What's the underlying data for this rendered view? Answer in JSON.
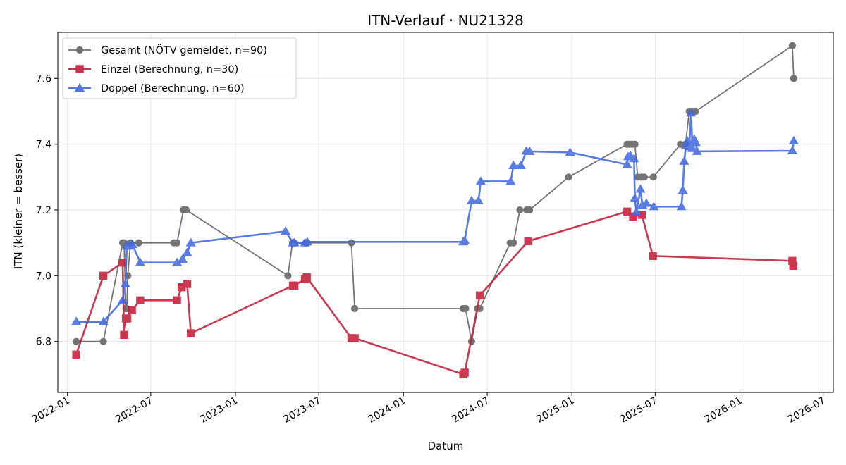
{
  "chart_data": {
    "type": "line",
    "title": "ITN-Verlauf · NU21328",
    "xlabel": "Datum",
    "ylabel": "ITN  (kleiner = besser)",
    "x_type": "date",
    "xlim": [
      "2021-12-11",
      "2026-07-23"
    ],
    "ylim": [
      6.645,
      7.74
    ],
    "x_ticks": [
      "2022-01",
      "2022-07",
      "2023-01",
      "2023-07",
      "2024-01",
      "2024-07",
      "2025-01",
      "2025-07",
      "2026-01",
      "2026-07"
    ],
    "y_ticks": [
      6.8,
      7.0,
      7.2,
      7.4,
      7.6
    ],
    "y_tick_labels": [
      "6.8",
      "7.0",
      "7.2",
      "7.4",
      "7.6"
    ],
    "grid": true,
    "legend_position": "top-left",
    "series": [
      {
        "name": "Gesamt (NÖTV gemeldet, n=90)",
        "color": "#404040",
        "marker": "circle",
        "points": [
          [
            "2022-01-20",
            6.8
          ],
          [
            "2022-03-20",
            6.8
          ],
          [
            "2022-05-01",
            7.1
          ],
          [
            "2022-05-04",
            7.1
          ],
          [
            "2022-05-08",
            6.9
          ],
          [
            "2022-05-10",
            6.9
          ],
          [
            "2022-05-12",
            7.0
          ],
          [
            "2022-05-18",
            7.1
          ],
          [
            "2022-06-05",
            7.1
          ],
          [
            "2022-08-20",
            7.1
          ],
          [
            "2022-08-27",
            7.1
          ],
          [
            "2022-09-10",
            7.2
          ],
          [
            "2022-09-16",
            7.2
          ],
          [
            "2023-04-25",
            7.0
          ],
          [
            "2023-05-05",
            7.1
          ],
          [
            "2023-05-08",
            7.1
          ],
          [
            "2023-06-03",
            7.1
          ],
          [
            "2023-06-06",
            7.1
          ],
          [
            "2023-09-10",
            7.1
          ],
          [
            "2023-09-17",
            6.9
          ],
          [
            "2024-05-10",
            6.9
          ],
          [
            "2024-05-15",
            6.9
          ],
          [
            "2024-05-28",
            6.8
          ],
          [
            "2024-06-10",
            6.9
          ],
          [
            "2024-06-15",
            6.9
          ],
          [
            "2024-08-20",
            7.1
          ],
          [
            "2024-08-27",
            7.1
          ],
          [
            "2024-09-10",
            7.2
          ],
          [
            "2024-09-25",
            7.2
          ],
          [
            "2024-10-01",
            7.2
          ],
          [
            "2024-12-25",
            7.3
          ],
          [
            "2025-05-01",
            7.4
          ],
          [
            "2025-05-06",
            7.4
          ],
          [
            "2025-05-12",
            7.4
          ],
          [
            "2025-05-18",
            7.4
          ],
          [
            "2025-05-24",
            7.3
          ],
          [
            "2025-06-01",
            7.3
          ],
          [
            "2025-06-07",
            7.3
          ],
          [
            "2025-06-27",
            7.3
          ],
          [
            "2025-08-25",
            7.4
          ],
          [
            "2025-09-05",
            7.4
          ],
          [
            "2025-09-13",
            7.5
          ],
          [
            "2025-09-20",
            7.5
          ],
          [
            "2025-09-27",
            7.5
          ],
          [
            "2026-04-25",
            7.7
          ],
          [
            "2026-04-28",
            7.6
          ]
        ]
      },
      {
        "name": "Einzel (Berechnung, n=30)",
        "color": "#c41e3a",
        "marker": "square",
        "points": [
          [
            "2022-01-20",
            6.76
          ],
          [
            "2022-03-20",
            7.0
          ],
          [
            "2022-05-01",
            7.04
          ],
          [
            "2022-05-04",
            6.82
          ],
          [
            "2022-05-08",
            6.87
          ],
          [
            "2022-05-11",
            6.87
          ],
          [
            "2022-05-21",
            6.895
          ],
          [
            "2022-06-08",
            6.925
          ],
          [
            "2022-08-27",
            6.925
          ],
          [
            "2022-09-06",
            6.965
          ],
          [
            "2022-09-18",
            6.975
          ],
          [
            "2022-09-26",
            6.825
          ],
          [
            "2023-05-06",
            6.97
          ],
          [
            "2023-05-09",
            6.97
          ],
          [
            "2023-06-01",
            6.99
          ],
          [
            "2023-06-05",
            6.995
          ],
          [
            "2023-09-10",
            6.81
          ],
          [
            "2023-09-17",
            6.81
          ],
          [
            "2024-05-10",
            6.7
          ],
          [
            "2024-05-13",
            6.705
          ],
          [
            "2024-06-15",
            6.94
          ],
          [
            "2024-09-28",
            7.105
          ],
          [
            "2025-05-01",
            7.195
          ],
          [
            "2025-05-14",
            7.18
          ],
          [
            "2025-06-02",
            7.185
          ],
          [
            "2025-06-26",
            7.06
          ],
          [
            "2026-04-25",
            7.045
          ],
          [
            "2026-04-27",
            7.03
          ]
        ]
      },
      {
        "name": "Doppel (Berechnung, n=60)",
        "color": "#4169e1",
        "marker": "triangle",
        "points": [
          [
            "2022-01-20",
            6.86
          ],
          [
            "2022-03-20",
            6.86
          ],
          [
            "2022-05-01",
            6.925
          ],
          [
            "2022-05-07",
            6.975
          ],
          [
            "2022-05-10",
            7.09
          ],
          [
            "2022-05-14",
            7.09
          ],
          [
            "2022-05-22",
            7.095
          ],
          [
            "2022-06-08",
            7.04
          ],
          [
            "2022-08-27",
            7.04
          ],
          [
            "2022-09-08",
            7.05
          ],
          [
            "2022-09-18",
            7.07
          ],
          [
            "2022-09-26",
            7.1
          ],
          [
            "2023-04-20",
            7.135
          ],
          [
            "2023-05-06",
            7.1
          ],
          [
            "2023-05-09",
            7.1
          ],
          [
            "2023-06-01",
            7.1
          ],
          [
            "2023-06-06",
            7.103
          ],
          [
            "2024-05-10",
            7.103
          ],
          [
            "2024-05-13",
            7.107
          ],
          [
            "2024-05-28",
            7.228
          ],
          [
            "2024-06-12",
            7.228
          ],
          [
            "2024-06-17",
            7.287
          ],
          [
            "2024-08-21",
            7.287
          ],
          [
            "2024-08-27",
            7.335
          ],
          [
            "2024-09-12",
            7.335
          ],
          [
            "2024-09-24",
            7.379
          ],
          [
            "2024-10-01",
            7.378
          ],
          [
            "2024-12-28",
            7.375
          ],
          [
            "2025-05-01",
            7.338
          ],
          [
            "2025-05-03",
            7.362
          ],
          [
            "2025-05-08",
            7.365
          ],
          [
            "2025-05-16",
            7.356
          ],
          [
            "2025-05-18",
            7.236
          ],
          [
            "2025-05-21",
            7.193
          ],
          [
            "2025-05-30",
            7.263
          ],
          [
            "2025-06-03",
            7.215
          ],
          [
            "2025-06-12",
            7.22
          ],
          [
            "2025-06-28",
            7.21
          ],
          [
            "2025-08-27",
            7.21
          ],
          [
            "2025-08-30",
            7.26
          ],
          [
            "2025-09-02",
            7.348
          ],
          [
            "2025-09-06",
            7.397
          ],
          [
            "2025-09-09",
            7.41
          ],
          [
            "2025-09-13",
            7.392
          ],
          [
            "2025-09-17",
            7.495
          ],
          [
            "2025-09-20",
            7.387
          ],
          [
            "2025-09-24",
            7.415
          ],
          [
            "2025-09-27",
            7.405
          ],
          [
            "2025-09-30",
            7.378
          ],
          [
            "2026-04-25",
            7.38
          ],
          [
            "2026-04-28",
            7.41
          ]
        ]
      }
    ]
  }
}
